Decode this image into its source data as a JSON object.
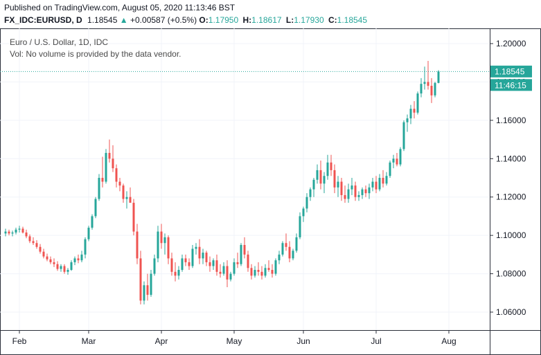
{
  "header": {
    "published": "Published on TradingView.com, August 05, 2020 11:13:46 BST",
    "symbol": "FX_IDC:EURUSD, D",
    "last": "1.18545",
    "change_arrow": "▲",
    "change": "+0.00587 (+0.5%)",
    "o_label": "O:",
    "o_value": "1.17950",
    "h_label": "H:",
    "h_value": "1.18617",
    "l_label": "L:",
    "l_value": "1.17930",
    "c_label": "C:",
    "c_value": "1.18545"
  },
  "legend": {
    "title": "Euro / U.S. Dollar, 1D, IDC",
    "volume_note": "Vol: No volume is provided by the data vendor."
  },
  "price_badge": "1.18545",
  "time_badge": "11:46:15",
  "colors": {
    "up": "#26a69a",
    "down": "#ef5350",
    "grid": "#f0f3fa",
    "axis": "#2a2e39",
    "badge": "#26a69a"
  },
  "chart_data": {
    "type": "candlestick",
    "title": "Euro / U.S. Dollar, 1D, IDC",
    "y_ticks": [
      "1.20000",
      "1.18000",
      "1.16000",
      "1.14000",
      "1.12000",
      "1.10000",
      "1.08000",
      "1.06000"
    ],
    "ylim": [
      1.055,
      1.205
    ],
    "x_ticks": [
      {
        "label": "Feb",
        "index": 4
      },
      {
        "label": "Mar",
        "index": 24
      },
      {
        "label": "Apr",
        "index": 45
      },
      {
        "label": "May",
        "index": 66
      },
      {
        "label": "Jun",
        "index": 86
      },
      {
        "label": "Jul",
        "index": 107
      },
      {
        "label": "Aug",
        "index": 128
      }
    ],
    "last_price": 1.18545,
    "candles": [
      [
        1.101,
        1.1035,
        1.0995,
        1.102
      ],
      [
        1.102,
        1.103,
        1.1,
        1.101
      ],
      [
        1.101,
        1.1025,
        1.0995,
        1.1015
      ],
      [
        1.1015,
        1.104,
        1.1005,
        1.103
      ],
      [
        1.103,
        1.105,
        1.1015,
        1.1035
      ],
      [
        1.1035,
        1.1045,
        1.101,
        1.1015
      ],
      [
        1.1015,
        1.103,
        1.0985,
        1.0995
      ],
      [
        1.0995,
        1.1005,
        1.096,
        1.097
      ],
      [
        1.097,
        1.099,
        1.095,
        1.096
      ],
      [
        1.096,
        1.0975,
        1.093,
        1.094
      ],
      [
        1.094,
        1.0955,
        1.0905,
        1.0915
      ],
      [
        1.0915,
        1.093,
        1.088,
        1.089
      ],
      [
        1.089,
        1.0905,
        1.0865,
        1.0875
      ],
      [
        1.0875,
        1.089,
        1.085,
        1.086
      ],
      [
        1.086,
        1.088,
        1.0835,
        1.085
      ],
      [
        1.085,
        1.0865,
        1.0815,
        1.0825
      ],
      [
        1.0825,
        1.085,
        1.081,
        1.084
      ],
      [
        1.084,
        1.085,
        1.08,
        1.081
      ],
      [
        1.081,
        1.083,
        1.0795,
        1.082
      ],
      [
        1.082,
        1.087,
        1.0815,
        1.086
      ],
      [
        1.086,
        1.089,
        1.0845,
        1.088
      ],
      [
        1.088,
        1.09,
        1.0855,
        1.087
      ],
      [
        1.087,
        1.092,
        1.086,
        1.09
      ],
      [
        1.09,
        1.099,
        1.088,
        1.098
      ],
      [
        1.098,
        1.105,
        1.097,
        1.104
      ],
      [
        1.104,
        1.111,
        1.103,
        1.11
      ],
      [
        1.11,
        1.12,
        1.109,
        1.119
      ],
      [
        1.119,
        1.132,
        1.118,
        1.13
      ],
      [
        1.13,
        1.141,
        1.125,
        1.128
      ],
      [
        1.128,
        1.145,
        1.127,
        1.143
      ],
      [
        1.143,
        1.15,
        1.138,
        1.14
      ],
      [
        1.14,
        1.147,
        1.133,
        1.135
      ],
      [
        1.135,
        1.137,
        1.125,
        1.128
      ],
      [
        1.128,
        1.13,
        1.123,
        1.126
      ],
      [
        1.126,
        1.127,
        1.117,
        1.119
      ],
      [
        1.119,
        1.123,
        1.114,
        1.12
      ],
      [
        1.12,
        1.125,
        1.118,
        1.117
      ],
      [
        1.117,
        1.119,
        1.1,
        1.102
      ],
      [
        1.102,
        1.106,
        1.085,
        1.088
      ],
      [
        1.088,
        1.092,
        1.064,
        1.066
      ],
      [
        1.066,
        1.076,
        1.064,
        1.074
      ],
      [
        1.074,
        1.08,
        1.066,
        1.069
      ],
      [
        1.069,
        1.082,
        1.068,
        1.08
      ],
      [
        1.08,
        1.09,
        1.079,
        1.088
      ],
      [
        1.088,
        1.105,
        1.086,
        1.102
      ],
      [
        1.102,
        1.106,
        1.093,
        1.096
      ],
      [
        1.096,
        1.101,
        1.09,
        1.099
      ],
      [
        1.099,
        1.1,
        1.085,
        1.088
      ],
      [
        1.088,
        1.091,
        1.079,
        1.081
      ],
      [
        1.081,
        1.086,
        1.076,
        1.079
      ],
      [
        1.079,
        1.084,
        1.077,
        1.082
      ],
      [
        1.082,
        1.09,
        1.081,
        1.088
      ],
      [
        1.088,
        1.09,
        1.084,
        1.086
      ],
      [
        1.086,
        1.088,
        1.082,
        1.084
      ],
      [
        1.084,
        1.095,
        1.083,
        1.093
      ],
      [
        1.093,
        1.096,
        1.09,
        1.094
      ],
      [
        1.094,
        1.098,
        1.085,
        1.088
      ],
      [
        1.088,
        1.093,
        1.085,
        1.091
      ],
      [
        1.091,
        1.092,
        1.084,
        1.086
      ],
      [
        1.086,
        1.089,
        1.081,
        1.084
      ],
      [
        1.084,
        1.088,
        1.082,
        1.087
      ],
      [
        1.087,
        1.09,
        1.079,
        1.081
      ],
      [
        1.081,
        1.085,
        1.078,
        1.08
      ],
      [
        1.08,
        1.086,
        1.079,
        1.084
      ],
      [
        1.084,
        1.087,
        1.073,
        1.077
      ],
      [
        1.077,
        1.081,
        1.076,
        1.08
      ],
      [
        1.08,
        1.088,
        1.079,
        1.086
      ],
      [
        1.086,
        1.091,
        1.083,
        1.085
      ],
      [
        1.085,
        1.096,
        1.084,
        1.095
      ],
      [
        1.095,
        1.099,
        1.088,
        1.09
      ],
      [
        1.09,
        1.092,
        1.081,
        1.083
      ],
      [
        1.083,
        1.085,
        1.077,
        1.079
      ],
      [
        1.079,
        1.084,
        1.078,
        1.082
      ],
      [
        1.082,
        1.086,
        1.079,
        1.081
      ],
      [
        1.081,
        1.084,
        1.077,
        1.079
      ],
      [
        1.079,
        1.085,
        1.078,
        1.083
      ],
      [
        1.083,
        1.087,
        1.081,
        1.082
      ],
      [
        1.082,
        1.085,
        1.078,
        1.08
      ],
      [
        1.08,
        1.088,
        1.079,
        1.087
      ],
      [
        1.087,
        1.092,
        1.085,
        1.09
      ],
      [
        1.09,
        1.097,
        1.089,
        1.096
      ],
      [
        1.096,
        1.101,
        1.092,
        1.094
      ],
      [
        1.094,
        1.097,
        1.086,
        1.088
      ],
      [
        1.088,
        1.093,
        1.087,
        1.092
      ],
      [
        1.092,
        1.101,
        1.091,
        1.099
      ],
      [
        1.099,
        1.112,
        1.098,
        1.11
      ],
      [
        1.11,
        1.115,
        1.107,
        1.114
      ],
      [
        1.114,
        1.122,
        1.112,
        1.12
      ],
      [
        1.12,
        1.125,
        1.118,
        1.124
      ],
      [
        1.124,
        1.13,
        1.12,
        1.129
      ],
      [
        1.129,
        1.137,
        1.127,
        1.134
      ],
      [
        1.134,
        1.139,
        1.124,
        1.127
      ],
      [
        1.127,
        1.133,
        1.122,
        1.131
      ],
      [
        1.131,
        1.142,
        1.129,
        1.138
      ],
      [
        1.138,
        1.142,
        1.131,
        1.134
      ],
      [
        1.134,
        1.137,
        1.122,
        1.125
      ],
      [
        1.125,
        1.131,
        1.12,
        1.128
      ],
      [
        1.128,
        1.13,
        1.118,
        1.121
      ],
      [
        1.121,
        1.126,
        1.117,
        1.119
      ],
      [
        1.119,
        1.127,
        1.117,
        1.124
      ],
      [
        1.124,
        1.13,
        1.121,
        1.126
      ],
      [
        1.126,
        1.128,
        1.118,
        1.12
      ],
      [
        1.12,
        1.123,
        1.118,
        1.121
      ],
      [
        1.121,
        1.125,
        1.119,
        1.124
      ],
      [
        1.124,
        1.126,
        1.12,
        1.122
      ],
      [
        1.122,
        1.127,
        1.119,
        1.125
      ],
      [
        1.125,
        1.13,
        1.123,
        1.128
      ],
      [
        1.128,
        1.131,
        1.122,
        1.124
      ],
      [
        1.124,
        1.132,
        1.123,
        1.13
      ],
      [
        1.13,
        1.134,
        1.125,
        1.127
      ],
      [
        1.127,
        1.133,
        1.126,
        1.131
      ],
      [
        1.131,
        1.139,
        1.13,
        1.138
      ],
      [
        1.138,
        1.142,
        1.135,
        1.14
      ],
      [
        1.14,
        1.143,
        1.136,
        1.137
      ],
      [
        1.137,
        1.146,
        1.136,
        1.145
      ],
      [
        1.145,
        1.16,
        1.144,
        1.159
      ],
      [
        1.159,
        1.163,
        1.154,
        1.161
      ],
      [
        1.161,
        1.168,
        1.158,
        1.166
      ],
      [
        1.166,
        1.17,
        1.161,
        1.164
      ],
      [
        1.164,
        1.175,
        1.163,
        1.174
      ],
      [
        1.174,
        1.182,
        1.172,
        1.179
      ],
      [
        1.179,
        1.188,
        1.176,
        1.18
      ],
      [
        1.18,
        1.191,
        1.176,
        1.178
      ],
      [
        1.178,
        1.182,
        1.169,
        1.173
      ],
      [
        1.173,
        1.18,
        1.172,
        1.1795
      ],
      [
        1.1795,
        1.18617,
        1.1793,
        1.18545
      ]
    ]
  }
}
